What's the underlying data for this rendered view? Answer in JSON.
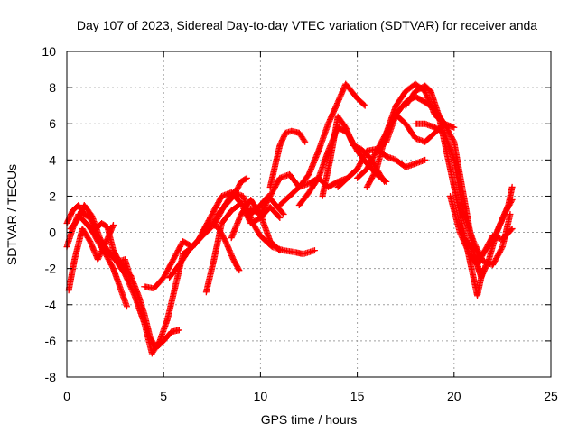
{
  "chart_data": {
    "type": "scatter",
    "title": "Day 107 of 2023, Sidereal Day-to-day VTEC variation (SDTVAR) for receiver anda",
    "xlabel": "GPS time / hours",
    "ylabel": "SDTVAR / TECUs",
    "xlim": [
      0,
      25
    ],
    "ylim": [
      -8,
      10
    ],
    "xticks": [
      "0",
      "5",
      "10",
      "15",
      "20",
      "25"
    ],
    "yticks": [
      "-8",
      "-6",
      "-4",
      "-2",
      "0",
      "2",
      "4",
      "6",
      "8",
      "10"
    ],
    "grid": true,
    "marker": "+",
    "color": "#ff0000",
    "series": [
      {
        "x": [
          0.0,
          0.3,
          0.6,
          0.9,
          1.2,
          1.5,
          1.8,
          2.1,
          2.4,
          2.7,
          3.0,
          3.2
        ],
        "y": [
          0.5,
          1.2,
          1.5,
          1.0,
          0.8,
          0.2,
          0.5,
          0.3,
          -1.0,
          -1.6,
          -1.5,
          -2.2
        ]
      },
      {
        "x": [
          0.0,
          0.3,
          0.6,
          0.9,
          1.2,
          1.6,
          2.0,
          2.4,
          2.8,
          3.1
        ],
        "y": [
          -0.8,
          0.2,
          1.0,
          0.6,
          0.3,
          -0.5,
          -1.2,
          -2.0,
          -3.2,
          -4.1
        ]
      },
      {
        "x": [
          0.1,
          0.4,
          0.8,
          1.2,
          1.6,
          2.0,
          2.4
        ],
        "y": [
          -3.2,
          -1.5,
          0.2,
          -0.5,
          -1.5,
          -0.6,
          0.4
        ]
      },
      {
        "x": [
          0.2,
          0.5,
          0.9,
          1.3,
          1.7,
          2.1,
          2.5,
          2.9,
          3.3,
          3.7,
          4.0,
          4.3,
          4.6,
          5.0,
          5.4,
          5.8
        ],
        "y": [
          0.2,
          0.6,
          1.5,
          0.9,
          -0.3,
          -1.0,
          -1.5,
          -1.8,
          -2.4,
          -3.5,
          -4.5,
          -5.8,
          -6.4,
          -6.0,
          -5.5,
          -5.4
        ]
      },
      {
        "x": [
          1.0,
          1.5,
          2.0,
          2.5,
          3.0,
          3.5,
          4.0,
          4.4,
          4.8,
          5.2,
          5.6,
          6.0,
          6.5
        ],
        "y": [
          0.5,
          -0.2,
          -1.0,
          -1.5,
          -2.3,
          -3.5,
          -5.0,
          -6.7,
          -6.0,
          -4.8,
          -3.0,
          -1.2,
          -0.8
        ]
      },
      {
        "x": [
          4.0,
          4.5,
          5.0,
          5.5,
          6.0,
          6.5,
          7.0,
          7.4,
          7.8,
          8.2,
          8.6,
          9.0,
          9.3
        ],
        "y": [
          -3.0,
          -3.1,
          -2.5,
          -1.5,
          -0.5,
          -0.8,
          -0.2,
          0.2,
          1.0,
          1.5,
          2.0,
          2.8,
          3.0
        ]
      },
      {
        "x": [
          5.3,
          5.8,
          6.3,
          6.8,
          7.3,
          7.8,
          8.2,
          8.6,
          8.9
        ],
        "y": [
          -2.5,
          -1.8,
          -1.0,
          -0.4,
          0.5,
          0.3,
          -0.5,
          -1.5,
          -2.1
        ]
      },
      {
        "x": [
          7.2,
          7.6,
          8.0,
          8.5,
          9.0,
          9.5,
          10.0,
          10.5,
          11.0
        ],
        "y": [
          -3.3,
          -1.5,
          0.5,
          1.2,
          1.6,
          0.5,
          0.8,
          1.4,
          0.8
        ]
      },
      {
        "x": [
          7.0,
          7.5,
          8.0,
          8.5,
          9.0,
          9.5,
          10.0,
          10.4,
          10.8,
          11.2
        ],
        "y": [
          0.0,
          1.0,
          2.0,
          2.2,
          1.6,
          1.0,
          1.5,
          2.0,
          1.5,
          1.0
        ]
      },
      {
        "x": [
          8.5,
          9.0,
          9.5,
          10.0,
          10.5,
          11.0
        ],
        "y": [
          -0.3,
          1.0,
          1.8,
          1.0,
          -0.5,
          -1.0
        ]
      },
      {
        "x": [
          7.6,
          8.1,
          8.6,
          9.1,
          9.6,
          10.0,
          10.6,
          11.2,
          11.8,
          12.2,
          12.8
        ],
        "y": [
          0.4,
          1.4,
          2.2,
          2.0,
          0.5,
          -0.2,
          -0.8,
          -1.0,
          -1.1,
          -1.2,
          -1.0
        ]
      },
      {
        "x": [
          9.5,
          10.0,
          10.5,
          11.0,
          11.5,
          12.0,
          12.5,
          13.0,
          13.5,
          14.0,
          14.5,
          15.0
        ],
        "y": [
          1.3,
          1.0,
          2.0,
          3.0,
          3.2,
          2.5,
          2.7,
          3.0,
          2.5,
          2.8,
          3.0,
          3.5
        ]
      },
      {
        "x": [
          10.5,
          11.0,
          11.3,
          11.6,
          12.0,
          12.3
        ],
        "y": [
          2.5,
          4.8,
          5.5,
          5.6,
          5.5,
          5.0
        ]
      },
      {
        "x": [
          11.0,
          11.5,
          12.0,
          12.5,
          13.0,
          13.5,
          14.0,
          14.4,
          14.7,
          15.0,
          15.4
        ],
        "y": [
          1.5,
          2.0,
          2.5,
          3.2,
          4.5,
          6.0,
          7.2,
          8.2,
          7.8,
          7.4,
          7.0
        ]
      },
      {
        "x": [
          12.0,
          12.5,
          13.0,
          13.5,
          14.0,
          14.5,
          15.0,
          15.5,
          16.0,
          16.5
        ],
        "y": [
          1.5,
          2.2,
          3.0,
          4.5,
          5.8,
          5.5,
          4.5,
          3.8,
          3.2,
          2.8
        ]
      },
      {
        "x": [
          13.2,
          13.6,
          14.0,
          14.4,
          14.8,
          15.2,
          15.6,
          16.0,
          16.4
        ],
        "y": [
          2.0,
          4.0,
          6.4,
          5.8,
          4.8,
          4.6,
          4.2,
          3.5,
          2.8
        ]
      },
      {
        "x": [
          14.0,
          14.5,
          15.0,
          15.5,
          16.0,
          16.5,
          17.0,
          17.5,
          18.0,
          18.5
        ],
        "y": [
          2.5,
          3.0,
          3.5,
          4.5,
          4.6,
          4.2,
          4.0,
          3.6,
          3.8,
          4.0
        ]
      },
      {
        "x": [
          15.0,
          15.5,
          16.0,
          16.5,
          17.0,
          17.5,
          18.0,
          18.5,
          19.0,
          19.5,
          20.0
        ],
        "y": [
          3.0,
          3.5,
          4.5,
          5.5,
          7.0,
          7.8,
          8.2,
          7.8,
          6.5,
          6.0,
          5.8
        ]
      },
      {
        "x": [
          15.5,
          16.0,
          16.5,
          17.0,
          17.5,
          18.0,
          18.5,
          19.0,
          19.5
        ],
        "y": [
          2.5,
          3.5,
          5.5,
          6.5,
          7.2,
          7.5,
          7.2,
          6.8,
          6.0
        ]
      },
      {
        "x": [
          16.0,
          16.5,
          17.0,
          17.5,
          18.0,
          18.5,
          19.0,
          19.5,
          20.0,
          20.5,
          21.0,
          21.3
        ],
        "y": [
          4.5,
          5.0,
          6.5,
          6.0,
          5.2,
          5.0,
          5.5,
          6.0,
          5.0,
          2.0,
          -1.0,
          -2.2
        ]
      },
      {
        "x": [
          17.5,
          18.0,
          18.5,
          18.8,
          19.2,
          19.6,
          20.0,
          20.4,
          20.8,
          21.2,
          21.5
        ],
        "y": [
          7.0,
          7.8,
          8.1,
          7.8,
          6.5,
          4.5,
          2.5,
          0.5,
          -1.5,
          -3.5,
          -2.0
        ]
      },
      {
        "x": [
          18.0,
          18.5,
          19.0,
          19.5,
          20.0,
          20.5,
          21.0,
          21.5,
          22.0,
          22.5,
          22.9
        ],
        "y": [
          6.0,
          6.0,
          5.8,
          5.5,
          4.0,
          1.0,
          -0.5,
          -1.6,
          -1.8,
          -0.8,
          1.0
        ]
      },
      {
        "x": [
          19.8,
          20.3,
          20.8,
          21.2,
          21.6,
          22.0,
          22.4,
          22.8,
          23.0
        ],
        "y": [
          2.0,
          0.0,
          -1.2,
          -1.8,
          -1.0,
          -0.5,
          0.5,
          1.5,
          2.5
        ]
      },
      {
        "x": [
          20.5,
          21.0,
          21.4,
          21.8,
          22.2,
          22.6,
          23.0
        ],
        "y": [
          -0.3,
          -1.0,
          -2.5,
          -1.5,
          0.0,
          1.0,
          1.8
        ]
      },
      {
        "x": [
          21.0,
          21.5,
          22.0,
          22.5,
          23.0
        ],
        "y": [
          -1.5,
          -1.2,
          -0.2,
          -0.4,
          0.2
        ]
      }
    ]
  }
}
